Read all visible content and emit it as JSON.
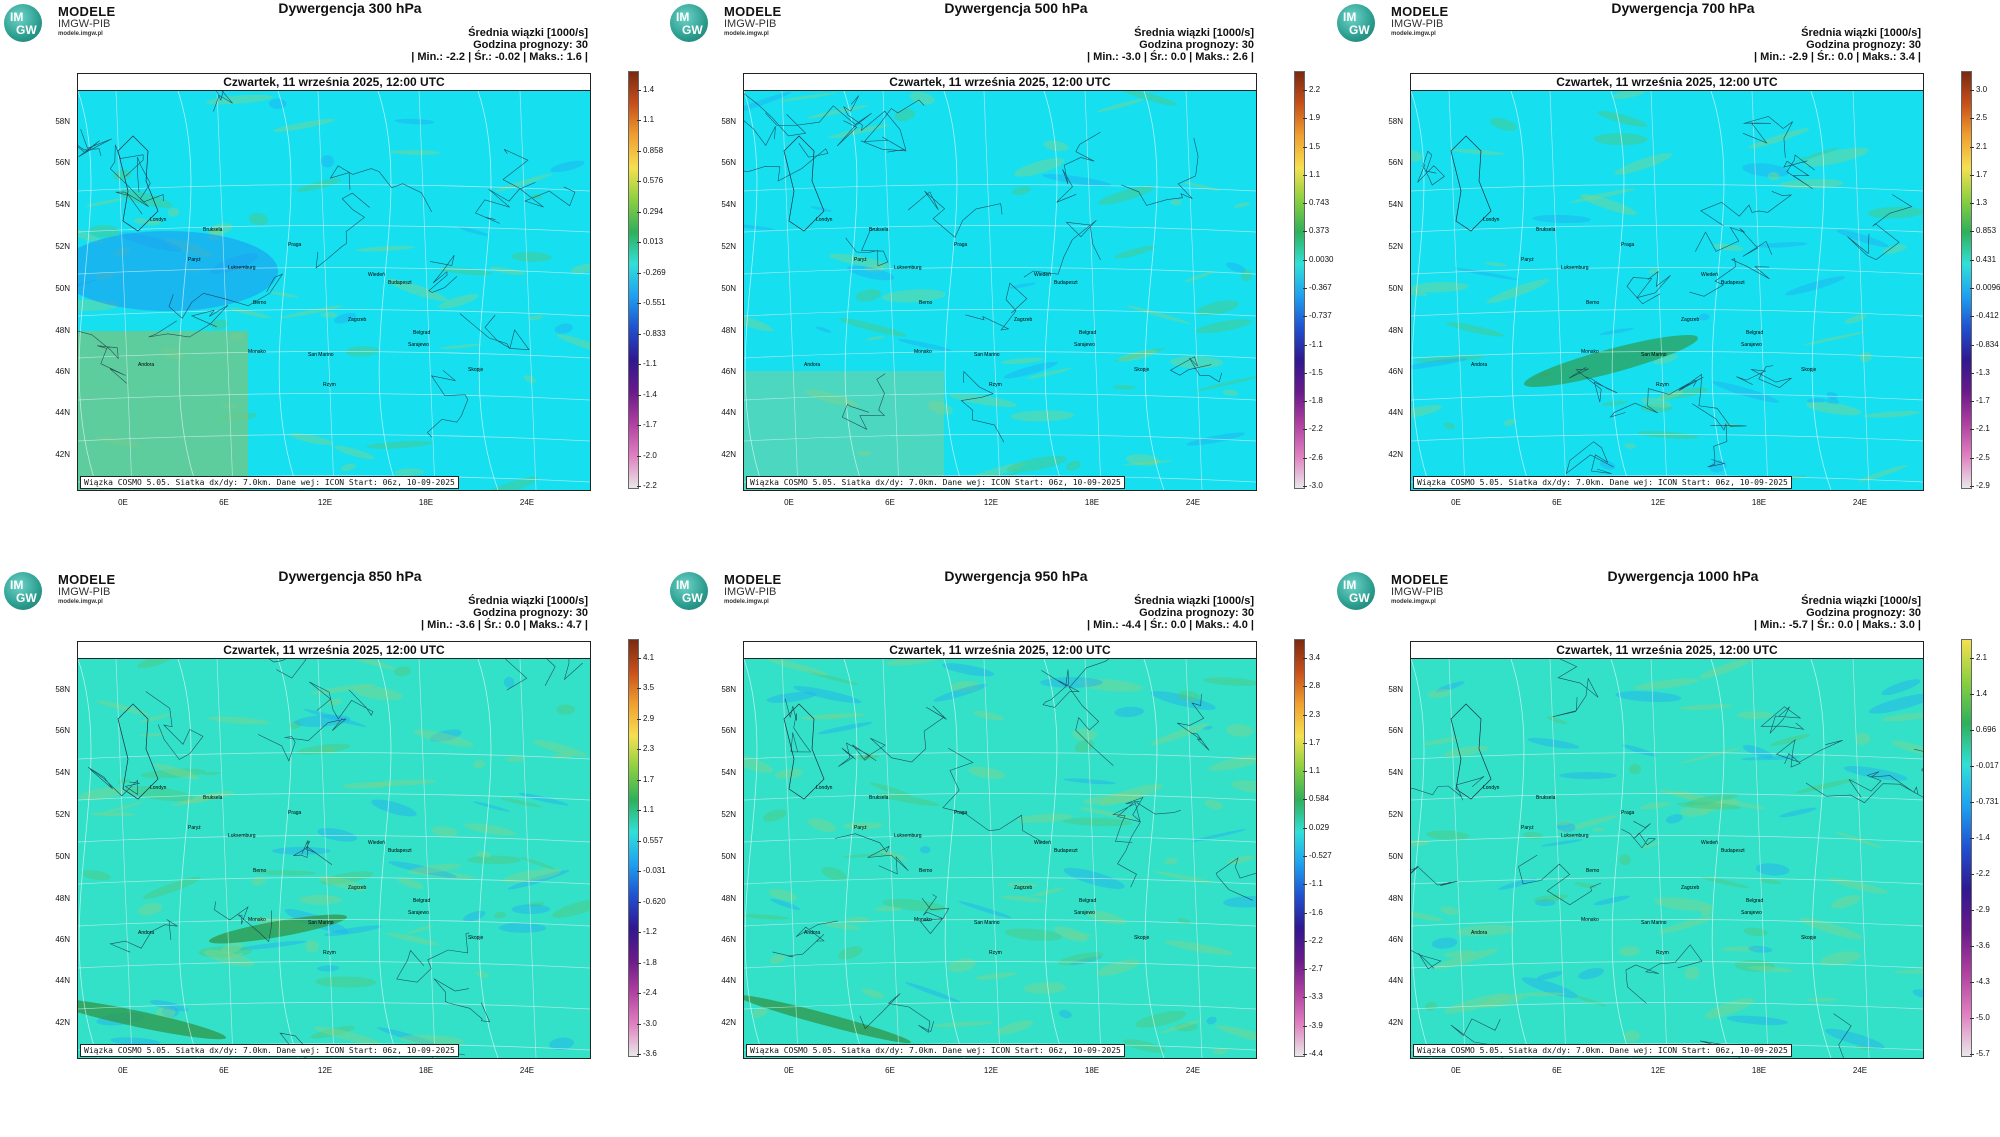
{
  "logo": {
    "line1": "MODELE",
    "line2": "IMGW-PIB",
    "line3": "modele.imgw.pl",
    "badge_top": "IM",
    "badge_bottom": "GW"
  },
  "common": {
    "info_line1": "Średnia wiązki [1000/s]",
    "info_line2": "Godzina prognozy: 30",
    "date_header": "Czwartek, 11 września 2025, 12:00 UTC",
    "footer": "Wiązka COSMO 5.05. Siatka dx/dy: 7.0km. Dane wej: ICON Start: 06z, 10-09-2025",
    "lat_labels": [
      "58N",
      "56N",
      "54N",
      "52N",
      "50N",
      "48N",
      "46N",
      "44N",
      "42N"
    ],
    "lon_labels": [
      "0E",
      "6E",
      "12E",
      "18E",
      "24E"
    ],
    "cities": [
      "Londyn",
      "Bruksela",
      "Paryż",
      "Luksemburg",
      "Praga",
      "Wiedeń",
      "Budapeszt",
      "Berno",
      "Zagrzeb",
      "Belgrad",
      "San Marino",
      "Sarajewo",
      "Skopje",
      "Monako",
      "Andora",
      "Rzym"
    ]
  },
  "panels": [
    {
      "title": "Dywergencja 300 hPa",
      "stats": "| Min.:   -2.2 | Śr.:   -0.02 | Maks.:     1.6 |",
      "cbar_ticks": [
        "1.4",
        "1.1",
        "0.858",
        "0.576",
        "0.294",
        "0.013",
        "-0.269",
        "-0.551",
        "-0.833",
        "-1.1",
        "-1.4",
        "-1.7",
        "-2.0",
        "-2.2"
      ],
      "cbar_colors": [
        "#7a2a10",
        "#c8501a",
        "#f0a030",
        "#f5e050",
        "#8ad040",
        "#2fb05a",
        "#30e0d8",
        "#1ea0f0",
        "#2050d0",
        "#301890",
        "#6a1a8a",
        "#b040a0",
        "#e080c0",
        "#e8e8e8"
      ]
    },
    {
      "title": "Dywergencja 500 hPa",
      "stats": "| Min.:   -3.0 | Śr.:    0.0 | Maks.:     2.6 |",
      "cbar_ticks": [
        "2.2",
        "1.9",
        "1.5",
        "1.1",
        "0.743",
        "0.373",
        "0.0030",
        "-0.367",
        "-0.737",
        "-1.1",
        "-1.5",
        "-1.8",
        "-2.2",
        "-2.6",
        "-3.0"
      ],
      "cbar_colors": [
        "#7a2a10",
        "#c8501a",
        "#f0a030",
        "#f5e050",
        "#8ad040",
        "#2fb05a",
        "#30e0d8",
        "#1ea0f0",
        "#2050d0",
        "#301890",
        "#6a1a8a",
        "#b040a0",
        "#e080c0",
        "#e8e8e8"
      ]
    },
    {
      "title": "Dywergencja 700 hPa",
      "stats": "| Min.:   -2.9 | Śr.:    0.0 | Maks.:     3.4 |",
      "cbar_ticks": [
        "3.0",
        "2.5",
        "2.1",
        "1.7",
        "1.3",
        "0.853",
        "0.431",
        "0.0096",
        "-0.412",
        "-0.834",
        "-1.3",
        "-1.7",
        "-2.1",
        "-2.5",
        "-2.9"
      ],
      "cbar_colors": [
        "#7a2a10",
        "#c8501a",
        "#f0a030",
        "#f5e050",
        "#8ad040",
        "#2fb05a",
        "#30e0d8",
        "#1ea0f0",
        "#2050d0",
        "#301890",
        "#6a1a8a",
        "#b040a0",
        "#e080c0",
        "#e8e8e8"
      ]
    },
    {
      "title": "Dywergencja 850 hPa",
      "stats": "| Min.:   -3.6 | Śr.:    0.0 | Maks.:     4.7 |",
      "cbar_ticks": [
        "4.1",
        "3.5",
        "2.9",
        "2.3",
        "1.7",
        "1.1",
        "0.557",
        "-0.031",
        "-0.620",
        "-1.2",
        "-1.8",
        "-2.4",
        "-3.0",
        "-3.6"
      ],
      "cbar_colors": [
        "#7a2a10",
        "#c8501a",
        "#f0a030",
        "#f5e050",
        "#8ad040",
        "#2fb05a",
        "#30e0d8",
        "#1ea0f0",
        "#2050d0",
        "#301890",
        "#6a1a8a",
        "#b040a0",
        "#e080c0",
        "#e8e8e8"
      ]
    },
    {
      "title": "Dywergencja 950 hPa",
      "stats": "| Min.:   -4.4 | Śr.:    0.0 | Maks.:     4.0 |",
      "cbar_ticks": [
        "3.4",
        "2.8",
        "2.3",
        "1.7",
        "1.1",
        "0.584",
        "0.029",
        "-0.527",
        "-1.1",
        "-1.6",
        "-2.2",
        "-2.7",
        "-3.3",
        "-3.9",
        "-4.4"
      ],
      "cbar_colors": [
        "#7a2a10",
        "#c8501a",
        "#f0a030",
        "#f5e050",
        "#8ad040",
        "#2fb05a",
        "#30e0d8",
        "#1ea0f0",
        "#2050d0",
        "#301890",
        "#6a1a8a",
        "#b040a0",
        "#e080c0",
        "#e8e8e8"
      ]
    },
    {
      "title": "Dywergencja 1000 hPa",
      "stats": "| Min.:   -5.7 | Śr.:    0.0 | Maks.:     3.0 |",
      "cbar_ticks": [
        "2.1",
        "1.4",
        "0.696",
        "-0.017",
        "-0.731",
        "-1.4",
        "-2.2",
        "-2.9",
        "-3.6",
        "-4.3",
        "-5.0",
        "-5.7"
      ],
      "cbar_colors": [
        "#f5e050",
        "#8ad040",
        "#2fb05a",
        "#30e0d8",
        "#1ea0f0",
        "#2050d0",
        "#301890",
        "#6a1a8a",
        "#b040a0",
        "#e080c0",
        "#e8e8e8"
      ]
    }
  ]
}
